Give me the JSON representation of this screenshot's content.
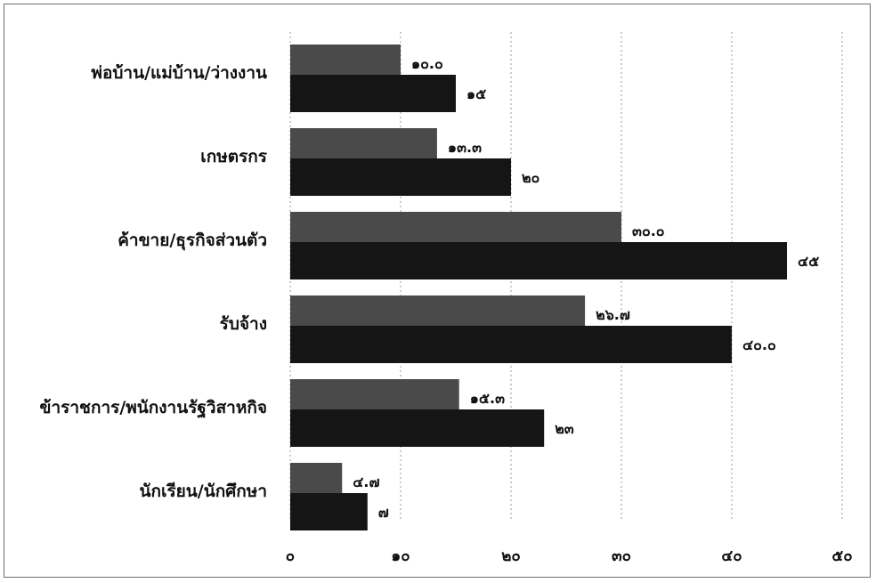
{
  "chart_data": {
    "type": "bar",
    "orientation": "horizontal",
    "title": "",
    "xlabel": "",
    "ylabel": "",
    "xlim": [
      0,
      50
    ],
    "grid": true,
    "legend": "none",
    "x_ticks": [
      0,
      10,
      20,
      30,
      40,
      50
    ],
    "x_tick_labels": [
      "๐",
      "๑๐",
      "๒๐",
      "๓๐",
      "๔๐",
      "๕๐"
    ],
    "categories": [
      "พ่อบ้าน/แม่บ้าน/ว่างงาน",
      "เกษตรกร",
      "ค้าขาย/ธุรกิจส่วนตัว",
      "รับจ้าง",
      "ข้าราชการ/พนักงานรัฐวิสาหกิจ",
      "นักเรียน/นักศึกษา"
    ],
    "series": [
      {
        "values": [
          10.0,
          13.3,
          30.0,
          26.7,
          15.3,
          4.7
        ],
        "labels": [
          "๑๐.๐",
          "๑๓.๓",
          "๓๐.๐",
          "๒๖.๗",
          "๑๕.๓",
          "๔.๗"
        ],
        "color": "#4a4a4a"
      },
      {
        "values": [
          15,
          20,
          45,
          40.0,
          23,
          7
        ],
        "labels": [
          "๑๕",
          "๒๐",
          "๔๕",
          "๔๐.๐",
          "๒๓",
          "๗"
        ],
        "color": "#151515"
      }
    ]
  }
}
